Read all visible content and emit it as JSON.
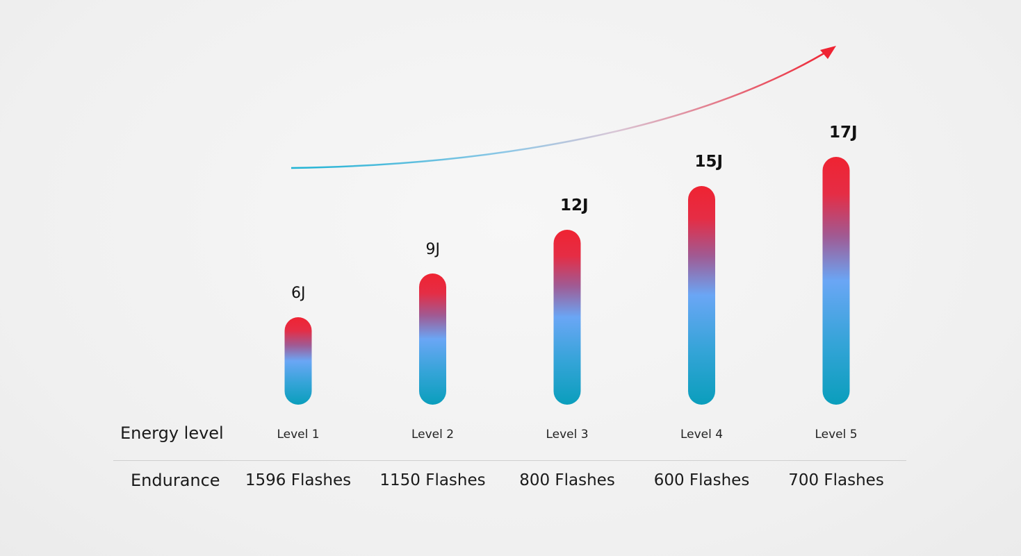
{
  "chart_data": {
    "type": "bar",
    "categories": [
      "Level 1",
      "Level 2",
      "Level 3",
      "Level 4",
      "Level 5"
    ],
    "values": [
      6,
      9,
      12,
      15,
      17
    ],
    "value_labels": [
      "6J",
      "9J",
      "12J",
      "15J",
      "17J"
    ],
    "unit": "J",
    "ylim": [
      0,
      20
    ],
    "grid": false,
    "legend": "none",
    "rows": {
      "energy": {
        "label": "Energy level",
        "values": [
          "Level 1",
          "Level 2",
          "Level 3",
          "Level 4",
          "Level 5"
        ]
      },
      "endurance": {
        "label": "Endurance",
        "values": [
          "1596 Flashes",
          "1150 Flashes",
          "800 Flashes",
          "600 Flashes",
          "700 Flashes"
        ]
      }
    },
    "annotations": [
      {
        "type": "trend-arrow",
        "direction": "up-right",
        "color_start": "#29b6d6",
        "color_end": "#ef2332"
      }
    ],
    "colors": {
      "bar_top": "#ef2332",
      "bar_mid": "#6aa6f5",
      "bar_bottom": "#0a9ebc"
    }
  }
}
